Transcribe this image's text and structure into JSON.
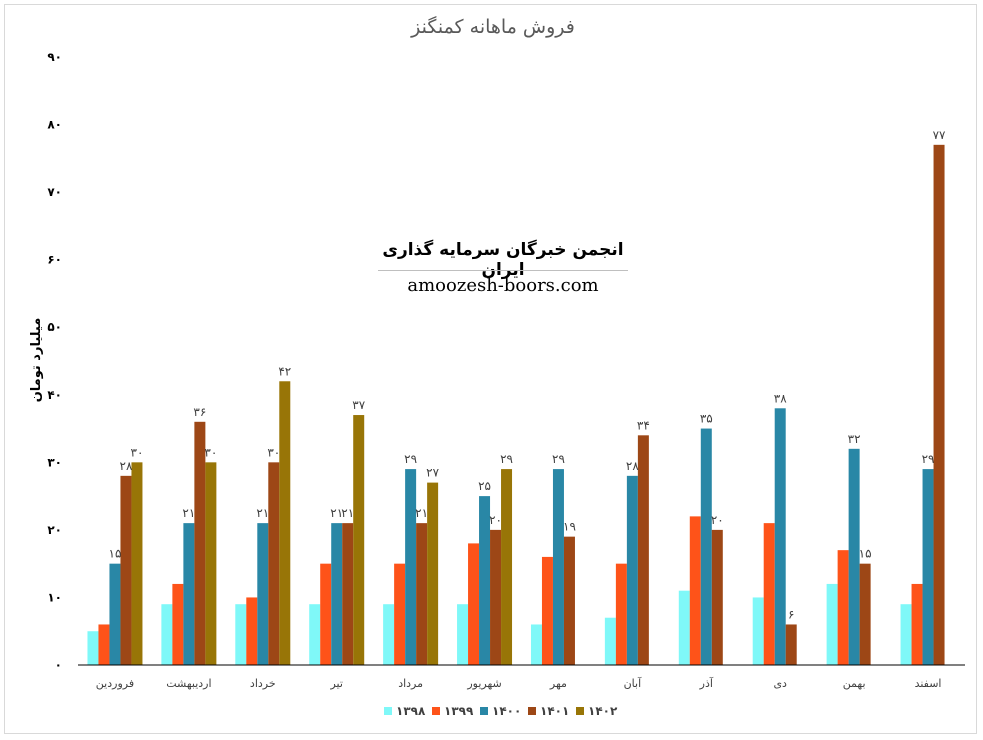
{
  "chart_data": {
    "type": "bar",
    "title": "فروش ماهانه کمنگنز",
    "ylabel": "میلیارد تومان",
    "xlabel": "",
    "ylim": [
      0,
      90
    ],
    "yticks": [
      0,
      10,
      20,
      30,
      40,
      50,
      60,
      70,
      80,
      90
    ],
    "ytick_labels": [
      "۰",
      "۱۰",
      "۲۰",
      "۳۰",
      "۴۰",
      "۵۰",
      "۶۰",
      "۷۰",
      "۸۰",
      "۹۰"
    ],
    "grid": false,
    "legend_position": "bottom",
    "categories": [
      "فروردین",
      "اردیبهشت",
      "خرداد",
      "تیر",
      "مرداد",
      "شهریور",
      "مهر",
      "آبان",
      "آذر",
      "دی",
      "بهمن",
      "اسفند"
    ],
    "series": [
      {
        "name": "۱۳۹۸",
        "color": "#7ff8f8",
        "values": [
          5,
          9,
          9,
          9,
          9,
          9,
          6,
          7,
          11,
          10,
          12,
          9
        ],
        "labels": [
          null,
          null,
          null,
          null,
          null,
          null,
          null,
          null,
          null,
          null,
          null,
          null
        ]
      },
      {
        "name": "۱۳۹۹",
        "color": "#fe5319",
        "values": [
          6,
          12,
          10,
          15,
          15,
          18,
          16,
          15,
          22,
          21,
          17,
          12
        ],
        "labels": [
          null,
          null,
          null,
          null,
          null,
          null,
          null,
          null,
          null,
          null,
          null,
          null
        ]
      },
      {
        "name": "۱۴۰۰",
        "color": "#2987a6",
        "values": [
          15,
          21,
          21,
          21,
          29,
          25,
          29,
          28,
          35,
          38,
          32,
          29
        ],
        "labels": [
          "۱۵",
          "۲۱",
          "۲۱",
          "۲۱",
          "۲۹",
          "۲۵",
          "۲۹",
          "۲۸",
          "۳۵",
          "۳۸",
          "۳۲",
          "۲۹"
        ]
      },
      {
        "name": "۱۴۰۱",
        "color": "#9d4716",
        "values": [
          28,
          36,
          30,
          21,
          21,
          20,
          19,
          34,
          20,
          6,
          15,
          77
        ],
        "labels": [
          "۲۸",
          "۳۶",
          "۳۰",
          "۲۱",
          "۲۱",
          "۲۰",
          "۱۹",
          "۳۴",
          "۲۰",
          "۶",
          "۱۵",
          "۷۷"
        ]
      },
      {
        "name": "۱۴۰۲",
        "color": "#987507",
        "values": [
          30,
          30,
          42,
          37,
          27,
          29,
          null,
          null,
          null,
          null,
          null,
          null
        ],
        "labels": [
          "۳۰",
          "۳۰",
          "۴۲",
          "۳۷",
          "۲۷",
          "۲۹",
          null,
          null,
          null,
          null,
          null,
          null
        ]
      }
    ]
  },
  "watermark": {
    "title": "انجمن خبرگان سرمایه گذاری ایران",
    "url": "amoozesh-boors.com"
  }
}
